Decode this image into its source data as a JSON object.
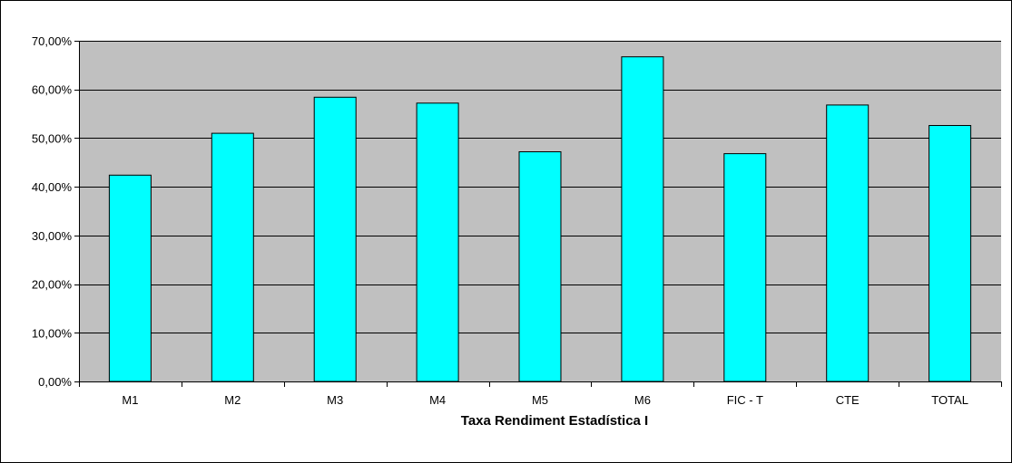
{
  "colors": {
    "plot_background": "#c0c0c0",
    "bar_fill": "#00ffff",
    "bar_stroke": "#000000",
    "gridline": "#000000"
  },
  "chart_data": {
    "type": "bar",
    "title": "",
    "xlabel": "Taxa Rendiment Estadística I",
    "ylabel": "",
    "categories": [
      "M1",
      "M2",
      "M3",
      "M4",
      "M5",
      "M6",
      "FIC - T",
      "CTE",
      "TOTAL"
    ],
    "values": [
      0.424,
      0.51,
      0.584,
      0.572,
      0.472,
      0.667,
      0.468,
      0.568,
      0.526
    ],
    "ylim": [
      0,
      0.7
    ],
    "yticks": [
      0,
      0.1,
      0.2,
      0.3,
      0.4,
      0.5,
      0.6,
      0.7
    ],
    "ytick_labels": [
      "0,00%",
      "10,00%",
      "20,00%",
      "30,00%",
      "40,00%",
      "50,00%",
      "60,00%",
      "70,00%"
    ],
    "grid": "horizontal",
    "legend": "none"
  }
}
